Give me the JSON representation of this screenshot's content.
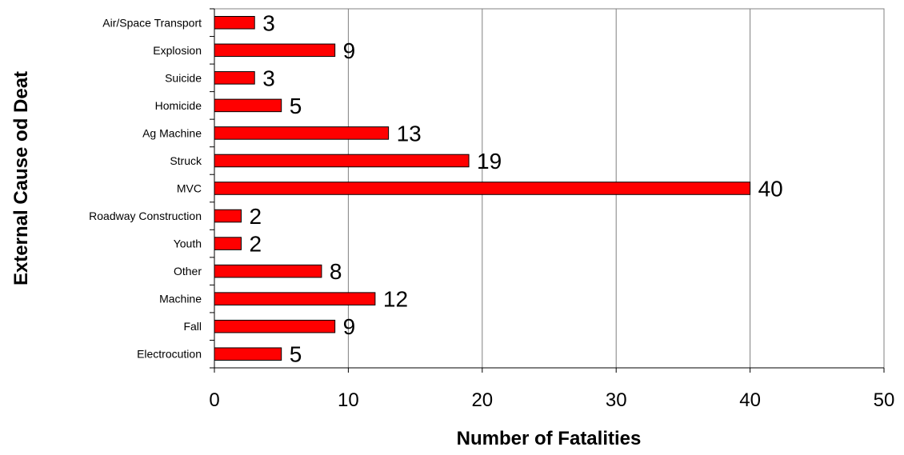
{
  "chart_data": {
    "type": "bar",
    "orientation": "horizontal",
    "title": "",
    "xlabel": "Number of Fatalities",
    "ylabel": "External Cause od Deat",
    "xlim": [
      0,
      50
    ],
    "xticks": [
      0,
      10,
      20,
      30,
      40,
      50
    ],
    "grid": "vertical",
    "legend": "none",
    "bar_color": "#ff0000",
    "categories": [
      "Air/Space Transport",
      "Explosion",
      "Suicide",
      "Homicide",
      "Ag Machine",
      "Struck",
      "MVC",
      "Roadway Construction",
      "Youth",
      "Other",
      "Machine",
      "Fall",
      "Electrocution"
    ],
    "values": [
      3,
      9,
      3,
      5,
      13,
      19,
      40,
      2,
      2,
      8,
      12,
      9,
      5
    ]
  }
}
